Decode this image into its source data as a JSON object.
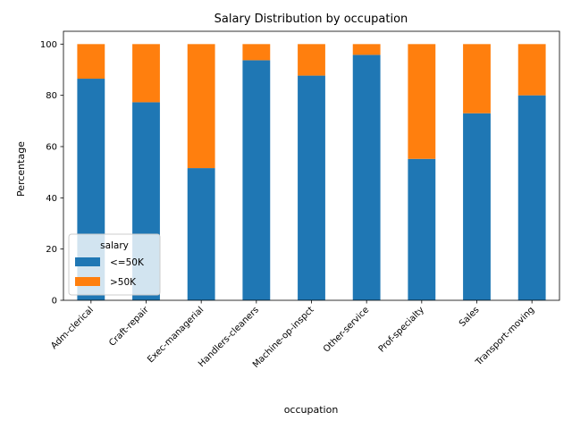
{
  "chart_data": {
    "type": "bar",
    "stacked": true,
    "title": "Salary Distribution by occupation",
    "xlabel": "occupation",
    "ylabel": "Percentage",
    "ylim": [
      0,
      105
    ],
    "yticks": [
      "0",
      "20",
      "40",
      "60",
      "80",
      "100"
    ],
    "grid": false,
    "categories": [
      "Adm-clerical",
      "Craft-repair",
      "Exec-managerial",
      "Handlers-cleaners",
      "Machine-op-inspct",
      "Other-service",
      "Prof-specialty",
      "Sales",
      "Transport-moving"
    ],
    "series": [
      {
        "name": "<=50K",
        "color": "#1f77b4",
        "values": [
          86.5,
          77.3,
          51.6,
          93.7,
          87.7,
          95.8,
          55.2,
          73.0,
          80.0
        ]
      },
      {
        "name": ">50K",
        "color": "#ff7f0e",
        "values": [
          13.5,
          22.7,
          48.4,
          6.3,
          12.3,
          4.2,
          44.8,
          27.0,
          20.0
        ]
      }
    ],
    "legend": {
      "title": "salary",
      "placement": "lower-left"
    }
  }
}
